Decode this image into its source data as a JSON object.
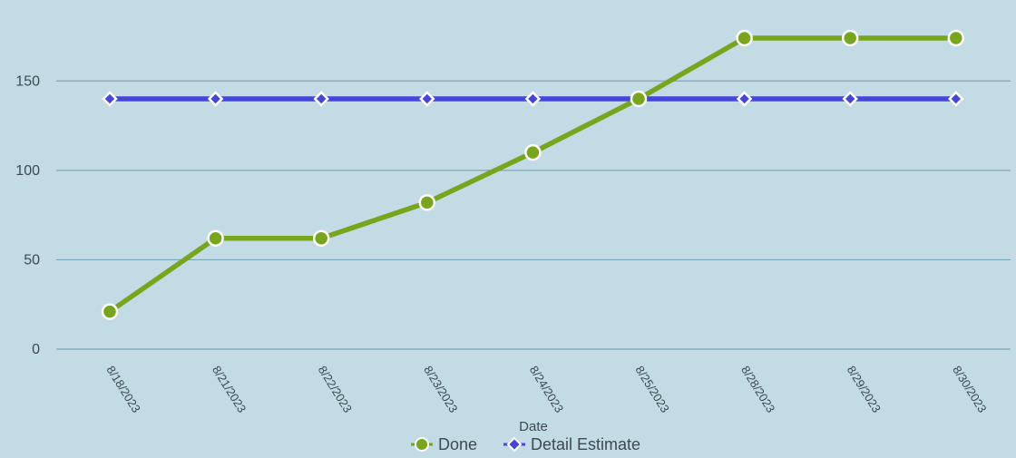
{
  "chart_data": {
    "type": "line",
    "x": [
      "8/18/2023",
      "8/21/2023",
      "8/22/2023",
      "8/23/2023",
      "8/24/2023",
      "8/25/2023",
      "8/28/2023",
      "8/29/2023",
      "8/30/2023"
    ],
    "series": [
      {
        "name": "Done",
        "values": [
          21,
          62,
          62,
          82,
          110,
          140,
          174,
          174,
          174
        ],
        "color": "#77a51c",
        "marker": "circle"
      },
      {
        "name": "Detail Estimate",
        "values": [
          140,
          140,
          140,
          140,
          140,
          140,
          140,
          140,
          140
        ],
        "color": "#4545dc",
        "marker": "diamond"
      }
    ],
    "xlabel": "Date",
    "ylabel": "",
    "ylim": [
      0,
      175
    ],
    "yticks": [
      0,
      50,
      100,
      150
    ],
    "grid": "horizontal",
    "legend_position": "bottom-center",
    "background": "#c2dbe4",
    "gridline_color": "#7aa7b8"
  }
}
